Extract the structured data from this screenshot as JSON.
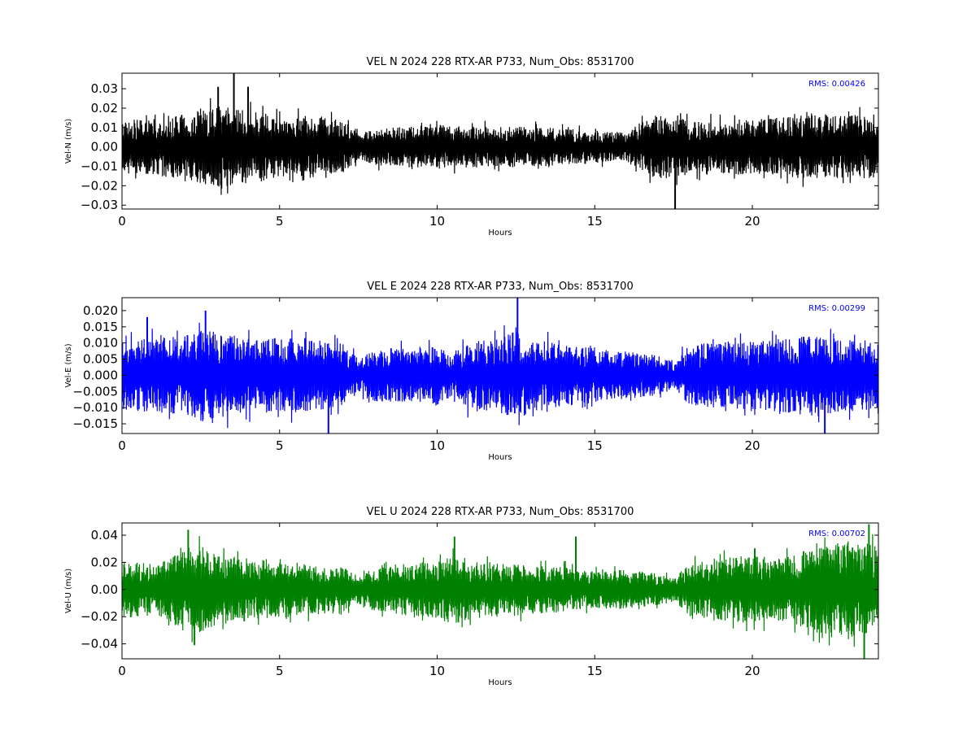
{
  "chart_data": [
    {
      "type": "line",
      "title": "VEL N 2024 228 RTX-AR  P733, Num_Obs: 8531700",
      "xlabel": "Hours",
      "ylabel": "Vel-N (m/s)",
      "color": "#000000",
      "xlim": [
        0,
        24
      ],
      "ylim": [
        -0.032,
        0.038
      ],
      "xticks": [
        0,
        5,
        10,
        15,
        20
      ],
      "xtick_labels": [
        "0",
        "5",
        "10",
        "15",
        "20"
      ],
      "yticks": [
        -0.03,
        -0.02,
        -0.01,
        0.0,
        0.01,
        0.02,
        0.03
      ],
      "ytick_labels": [
        "−0.03",
        "−0.02",
        "−0.01",
        "0.00",
        "0.01",
        "0.02",
        "0.03"
      ],
      "annotation": "RMS:  0.00426",
      "annotation_color": "#0000ff",
      "envelope": {
        "hours": [
          0,
          1,
          2,
          2.5,
          3,
          3.5,
          4,
          5,
          6,
          7,
          7.5,
          8,
          9,
          10,
          11,
          12,
          13,
          14,
          15,
          16,
          16.5,
          17,
          17.5,
          18,
          19,
          20,
          21,
          22,
          23,
          24
        ],
        "amplitude": [
          0.013,
          0.014,
          0.016,
          0.019,
          0.02,
          0.019,
          0.018,
          0.015,
          0.015,
          0.013,
          0.007,
          0.009,
          0.01,
          0.011,
          0.01,
          0.01,
          0.01,
          0.009,
          0.008,
          0.007,
          0.012,
          0.016,
          0.015,
          0.013,
          0.013,
          0.014,
          0.015,
          0.016,
          0.016,
          0.015
        ]
      },
      "spikes": [
        {
          "x": 3.55,
          "y": 0.038
        },
        {
          "x": 3.05,
          "y": 0.031
        },
        {
          "x": 17.55,
          "y": -0.032
        },
        {
          "x": 4.0,
          "y": 0.031
        }
      ]
    },
    {
      "type": "line",
      "title": "VEL E 2024 228 RTX-AR  P733, Num_Obs: 8531700",
      "xlabel": "Hours",
      "ylabel": "Vel-E (m/s)",
      "color": "#0000ff",
      "xlim": [
        0,
        24
      ],
      "ylim": [
        -0.018,
        0.024
      ],
      "xticks": [
        0,
        5,
        10,
        15,
        20
      ],
      "xtick_labels": [
        "0",
        "5",
        "10",
        "15",
        "20"
      ],
      "yticks": [
        -0.015,
        -0.01,
        -0.005,
        0.0,
        0.005,
        0.01,
        0.015,
        0.02
      ],
      "ytick_labels": [
        "−0.015",
        "−0.010",
        "−0.005",
        "0.000",
        "0.005",
        "0.010",
        "0.015",
        "0.020"
      ],
      "annotation": "RMS:  0.00299",
      "annotation_color": "#0000ff",
      "envelope": {
        "hours": [
          0,
          1,
          2,
          2.5,
          3,
          4,
          5,
          6,
          7,
          7.5,
          8,
          9,
          10,
          10.5,
          11,
          12,
          12.5,
          13,
          14,
          15,
          16,
          17,
          17.5,
          18,
          19,
          20,
          21,
          22,
          23,
          24
        ],
        "amplitude": [
          0.01,
          0.011,
          0.012,
          0.014,
          0.013,
          0.011,
          0.011,
          0.011,
          0.009,
          0.005,
          0.008,
          0.008,
          0.009,
          0.006,
          0.01,
          0.011,
          0.013,
          0.011,
          0.009,
          0.008,
          0.007,
          0.006,
          0.004,
          0.009,
          0.01,
          0.01,
          0.011,
          0.012,
          0.011,
          0.01
        ]
      },
      "spikes": [
        {
          "x": 12.55,
          "y": 0.024
        },
        {
          "x": 2.65,
          "y": 0.02
        },
        {
          "x": 6.55,
          "y": -0.019
        },
        {
          "x": 22.3,
          "y": -0.018
        },
        {
          "x": 0.8,
          "y": 0.018
        }
      ]
    },
    {
      "type": "line",
      "title": "VEL U 2024 228 RTX-AR  P733, Num_Obs: 8531700",
      "xlabel": "Hours",
      "ylabel": "Vel-U (m/s)",
      "color": "#008000",
      "xlim": [
        0,
        24
      ],
      "ylim": [
        -0.051,
        0.049
      ],
      "xticks": [
        0,
        5,
        10,
        15,
        20
      ],
      "xtick_labels": [
        "0",
        "5",
        "10",
        "15",
        "20"
      ],
      "yticks": [
        -0.04,
        -0.02,
        0.0,
        0.02,
        0.04
      ],
      "ytick_labels": [
        "−0.04",
        "−0.02",
        "0.00",
        "0.02",
        "0.04"
      ],
      "annotation": "RMS:  0.00702",
      "annotation_color": "#0000ff",
      "envelope": {
        "hours": [
          0,
          1,
          1.5,
          2,
          2.5,
          3,
          4,
          5,
          6,
          7,
          7.5,
          8,
          9,
          10,
          10.5,
          11,
          12,
          13,
          14,
          15,
          16,
          17,
          17.5,
          18,
          19,
          20,
          21,
          22,
          23,
          24
        ],
        "amplitude": [
          0.02,
          0.018,
          0.022,
          0.03,
          0.03,
          0.025,
          0.022,
          0.02,
          0.018,
          0.016,
          0.01,
          0.015,
          0.018,
          0.02,
          0.025,
          0.022,
          0.018,
          0.017,
          0.016,
          0.013,
          0.014,
          0.011,
          0.008,
          0.018,
          0.022,
          0.024,
          0.022,
          0.03,
          0.034,
          0.032
        ]
      },
      "spikes": [
        {
          "x": 23.55,
          "y": -0.051
        },
        {
          "x": 2.1,
          "y": 0.044
        },
        {
          "x": 23.7,
          "y": 0.048
        },
        {
          "x": 14.4,
          "y": 0.039
        },
        {
          "x": 10.55,
          "y": 0.039
        },
        {
          "x": 2.3,
          "y": -0.041
        }
      ]
    }
  ]
}
